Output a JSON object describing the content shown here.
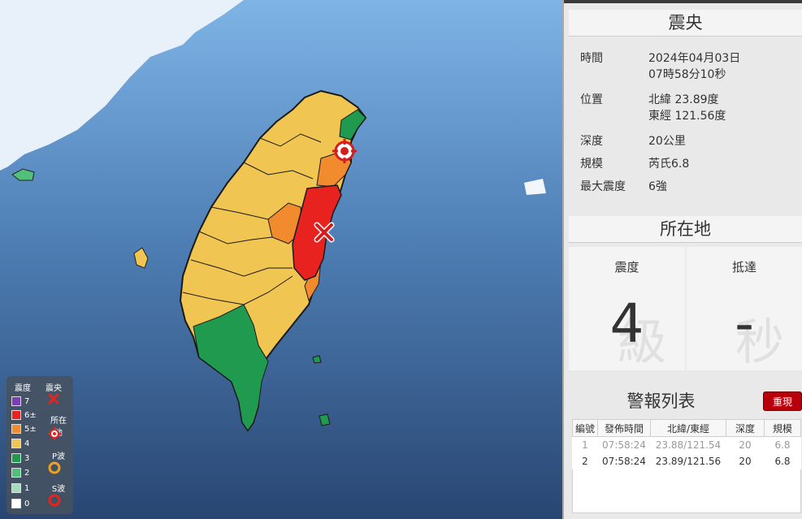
{
  "legend": {
    "intensity_header": "震度",
    "epicenter_header": "震央",
    "levels": [
      {
        "label": "7",
        "color": "#7b3fb3"
      },
      {
        "label": "6±",
        "color": "#e8231f"
      },
      {
        "label": "5±",
        "color": "#f28a2e"
      },
      {
        "label": "4",
        "color": "#f0c552"
      },
      {
        "label": "3",
        "color": "#1f9a4e"
      },
      {
        "label": "2",
        "color": "#52c07a"
      },
      {
        "label": "1",
        "color": "#a6dcbc"
      },
      {
        "label": "0",
        "color": "#ffffff"
      }
    ],
    "location_label": "所在地",
    "p_wave_label": "P波",
    "s_wave_label": "S波"
  },
  "epicenter": {
    "title": "震央",
    "rows": [
      {
        "key": "時間",
        "value1": "2024年04月03日",
        "value2": "07時58分10秒"
      },
      {
        "key": "位置",
        "value1": "北緯 23.89度",
        "value2": "東經 121.56度"
      },
      {
        "key": "深度",
        "value1": "20公里",
        "value2": ""
      },
      {
        "key": "規模",
        "value1": "芮氏6.8",
        "value2": ""
      },
      {
        "key": "最大震度",
        "value1": "6強",
        "value2": ""
      }
    ]
  },
  "location": {
    "title": "所在地",
    "intensity_label": "震度",
    "intensity_value": "4",
    "intensity_watermark": "級",
    "arrival_label": "抵達",
    "arrival_value": "-",
    "arrival_watermark": "秒"
  },
  "reports": {
    "title": "警報列表",
    "replay_label": "重現",
    "columns": [
      "編號",
      "發佈時間",
      "北緯/東經",
      "深度",
      "規模"
    ],
    "rows": [
      {
        "no": "1",
        "time": "07:58:24",
        "coord": "23.88/121.54",
        "depth": "20",
        "mag": "6.8"
      },
      {
        "no": "2",
        "time": "07:58:24",
        "coord": "23.89/121.56",
        "depth": "20",
        "mag": "6.8"
      }
    ]
  },
  "colors": {
    "sea": "#2d4e78",
    "mainland": "#e8f1f9",
    "replay_button": "#b7000b"
  }
}
